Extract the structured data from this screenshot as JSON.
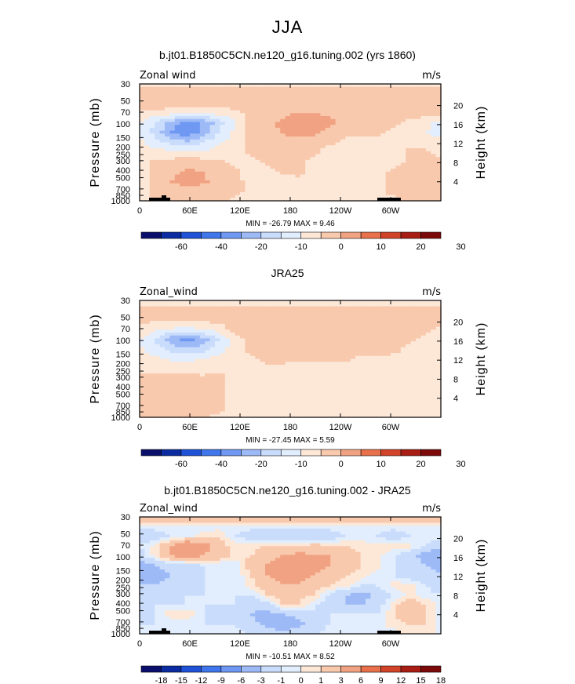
{
  "figure_title": "JJA",
  "chart_data": [
    {
      "type": "heatmap",
      "title": "b.jt01.B1850C5CN.ne120_g16.tuning.002 (yrs 1860)",
      "left_label": "Zonal wind",
      "right_label": "m/s",
      "ylabel": "Pressure (mb)",
      "ylabel_right": "Height (km)",
      "xlabel": "",
      "x_ticks": [
        "0",
        "60E",
        "120E",
        "180",
        "120W",
        "60W"
      ],
      "y_ticks": [
        "30",
        "50",
        "70",
        "100",
        "150",
        "200",
        "250",
        "300",
        "400",
        "500",
        "700",
        "850",
        "1000"
      ],
      "height_ticks": [
        "20",
        "16",
        "12",
        "8",
        "4"
      ],
      "stats": "MIN = -26.79   MAX =   9.46",
      "min": -26.79,
      "max": 9.46,
      "colorbar_labels": [
        "-60",
        "-40",
        "-20",
        "-10",
        "0",
        "10",
        "20",
        "30"
      ],
      "grid": [
        [
          -2,
          -2,
          -2,
          -2,
          -2,
          -2,
          -2,
          -2,
          -2,
          -2,
          -2,
          -2,
          -2,
          -2,
          -2,
          -2,
          -2,
          -2,
          -2,
          -2
        ],
        [
          3,
          3,
          3,
          3,
          3,
          3,
          3,
          3,
          3,
          3,
          3,
          3,
          3,
          3,
          3,
          3,
          3,
          3,
          3,
          3
        ],
        [
          3,
          3,
          3,
          3,
          3,
          3,
          3,
          3,
          3,
          3,
          3,
          3,
          3,
          3,
          3,
          3,
          3,
          3,
          3,
          3
        ],
        [
          -2,
          -2,
          -3,
          -4,
          -4,
          -3,
          -2,
          2,
          3,
          4,
          5,
          5,
          4,
          3,
          3,
          3,
          3,
          3,
          3,
          2
        ],
        [
          -5,
          -10,
          -18,
          -22,
          -20,
          -12,
          -5,
          2,
          4,
          6,
          8,
          7,
          6,
          4,
          3,
          3,
          2,
          -2,
          -4,
          -6
        ],
        [
          -6,
          -12,
          -20,
          -24,
          -18,
          -10,
          -4,
          1,
          3,
          5,
          6,
          6,
          4,
          2,
          2,
          2,
          -2,
          -3,
          -5,
          -6
        ],
        [
          -4,
          -8,
          -12,
          -14,
          -10,
          -6,
          -2,
          1,
          3,
          4,
          4,
          3,
          1,
          -2,
          -2,
          -2,
          -2,
          -2,
          -3,
          -4
        ],
        [
          -2,
          -3,
          -4,
          -5,
          -4,
          -3,
          -1,
          1,
          2,
          3,
          2,
          1,
          -2,
          -3,
          -3,
          -3,
          -2,
          1,
          1,
          -2
        ],
        [
          -1,
          1,
          2,
          3,
          2,
          1,
          -1,
          -2,
          1,
          2,
          1,
          -1,
          -2,
          -3,
          -3,
          -2,
          -2,
          1,
          2,
          1
        ],
        [
          -2,
          2,
          4,
          6,
          5,
          3,
          1,
          -2,
          -2,
          1,
          1,
          -1,
          -2,
          -2,
          -2,
          -2,
          1,
          3,
          3,
          2
        ],
        [
          -2,
          2,
          5,
          7,
          6,
          3,
          1,
          -1,
          -2,
          -2,
          -1,
          -1,
          -2,
          -2,
          -2,
          -1,
          1,
          2,
          2,
          1
        ],
        [
          -1,
          1,
          3,
          3,
          3,
          2,
          1,
          -1,
          -1,
          -1,
          -1,
          -1,
          -1,
          -1,
          -1,
          -1,
          1,
          1,
          1,
          1
        ],
        [
          -1,
          1,
          2,
          2,
          1,
          1,
          -1,
          -1,
          -1,
          -1,
          -1,
          -1,
          -1,
          -1,
          -1,
          -1,
          -1,
          1,
          1,
          1
        ]
      ]
    },
    {
      "type": "heatmap",
      "title": "JRA25",
      "left_label": "Zonal_wind",
      "right_label": "m/s",
      "ylabel": "Pressure (mb)",
      "ylabel_right": "Height (km)",
      "xlabel": "",
      "x_ticks": [
        "0",
        "60E",
        "120E",
        "180",
        "120W",
        "60W"
      ],
      "y_ticks": [
        "30",
        "50",
        "70",
        "100",
        "150",
        "200",
        "250",
        "300",
        "400",
        "500",
        "700",
        "850",
        "1000"
      ],
      "height_ticks": [
        "20",
        "16",
        "12",
        "8",
        "4"
      ],
      "stats": "MIN = -27.45   MAX =   5.59",
      "min": -27.45,
      "max": 5.59,
      "colorbar_labels": [
        "-60",
        "-40",
        "-20",
        "-10",
        "0",
        "10",
        "20",
        "30"
      ],
      "grid": [
        [
          -3,
          -3,
          -3,
          -3,
          -3,
          -3,
          -3,
          -3,
          -3,
          -3,
          -3,
          -3,
          -3,
          -3,
          -3,
          -3,
          -3,
          -3,
          -3,
          -3
        ],
        [
          1,
          1,
          1,
          1,
          1,
          1,
          2,
          3,
          3,
          3,
          3,
          3,
          3,
          2,
          2,
          2,
          1,
          1,
          1,
          1
        ],
        [
          1,
          1,
          1,
          1,
          1,
          2,
          3,
          3,
          4,
          4,
          4,
          4,
          3,
          3,
          3,
          2,
          1,
          1,
          1,
          1
        ],
        [
          -2,
          -4,
          -6,
          -7,
          -5,
          -3,
          2,
          3,
          4,
          4,
          4,
          4,
          4,
          3,
          3,
          3,
          2,
          1,
          1,
          -1
        ],
        [
          -5,
          -10,
          -18,
          -22,
          -18,
          -10,
          -2,
          2,
          3,
          3,
          3,
          3,
          3,
          3,
          4,
          5,
          3,
          1,
          -1,
          -2
        ],
        [
          -4,
          -8,
          -12,
          -14,
          -12,
          -8,
          -2,
          1,
          2,
          2,
          2,
          2,
          2,
          2,
          2,
          2,
          1,
          -1,
          -1,
          -2
        ],
        [
          -2,
          -4,
          -6,
          -6,
          -5,
          -3,
          -1,
          -1,
          1,
          1,
          1,
          1,
          1,
          1,
          -1,
          -1,
          -1,
          -1,
          -1,
          -2
        ],
        [
          -1,
          -2,
          -2,
          -2,
          -2,
          -1,
          -1,
          -1,
          -1,
          -1,
          -2,
          -2,
          -2,
          -2,
          -2,
          -2,
          -2,
          -2,
          -2,
          -2
        ],
        [
          1,
          2,
          2,
          2,
          1,
          1,
          -1,
          -1,
          -2,
          -2,
          -2,
          -2,
          -2,
          -2,
          -2,
          -2,
          -2,
          -2,
          -2,
          -1
        ],
        [
          1,
          2,
          3,
          3,
          2,
          1,
          -1,
          -2,
          -2,
          -2,
          -2,
          -2,
          -2,
          -2,
          -2,
          -2,
          -2,
          -2,
          -1,
          -1
        ],
        [
          1,
          2,
          3,
          3,
          3,
          1,
          -1,
          -2,
          -2,
          -2,
          -2,
          -2,
          -2,
          -2,
          -2,
          -2,
          -2,
          -1,
          -1,
          -1
        ],
        [
          1,
          1,
          2,
          2,
          1,
          1,
          -1,
          -1,
          -1,
          -1,
          -1,
          -1,
          -1,
          -1,
          -1,
          -1,
          -1,
          -1,
          -1,
          -1
        ],
        [
          1,
          1,
          1,
          1,
          1,
          -1,
          -1,
          -1,
          -1,
          -1,
          -1,
          -1,
          -1,
          -1,
          -1,
          -1,
          -1,
          -1,
          -1,
          -1
        ]
      ]
    },
    {
      "type": "heatmap",
      "title": "b.jt01.B1850C5CN.ne120_g16.tuning.002 - JRA25",
      "left_label": "Zonal_wind",
      "right_label": "m/s",
      "ylabel": "Pressure (mb)",
      "ylabel_right": "Height (km)",
      "xlabel": "",
      "x_ticks": [
        "0",
        "60E",
        "120E",
        "180",
        "120W",
        "60W"
      ],
      "y_ticks": [
        "30",
        "50",
        "70",
        "100",
        "150",
        "200",
        "250",
        "300",
        "400",
        "500",
        "700",
        "850",
        "1000"
      ],
      "height_ticks": [
        "20",
        "16",
        "12",
        "8",
        "4"
      ],
      "stats": "MIN = -10.51   MAX =   8.52",
      "min": -10.51,
      "max": 8.52,
      "colorbar_labels": [
        "-18",
        "-15",
        "-12",
        "-9",
        "-6",
        "-3",
        "-1",
        "0",
        "1",
        "3",
        "6",
        "9",
        "12",
        "15",
        "18"
      ],
      "grid": [
        [
          3,
          3,
          3,
          3,
          3,
          3,
          3,
          3,
          3,
          3,
          3,
          3,
          3,
          3,
          3,
          3,
          3,
          3,
          3,
          3
        ],
        [
          -0.5,
          -0.5,
          -0.5,
          -0.5,
          -0.5,
          -0.5,
          -0.5,
          -0.5,
          -0.5,
          -0.5,
          -0.5,
          -0.5,
          -0.5,
          -0.5,
          -0.5,
          -0.5,
          -0.5,
          -0.5,
          -0.5,
          -0.5
        ],
        [
          -2,
          -2,
          -1,
          -0.5,
          0.5,
          1,
          -1,
          -2,
          -3,
          -2,
          -2,
          -3,
          -2,
          -1,
          -0.5,
          -1,
          -2,
          -1,
          -0.5,
          -0.5
        ],
        [
          -1,
          0.5,
          3,
          6,
          4,
          2,
          0.5,
          0.5,
          1,
          1,
          1,
          2,
          1,
          1,
          0.5,
          0.5,
          0.5,
          0.5,
          -1,
          -2
        ],
        [
          -2,
          0.5,
          3,
          4,
          3,
          2,
          0.5,
          1,
          2,
          3,
          4,
          3,
          3,
          2,
          1,
          0.5,
          -1,
          -2,
          -4,
          -6
        ],
        [
          -4,
          -3,
          -2,
          -2,
          -1,
          -1,
          -1,
          2,
          3,
          4,
          4,
          4,
          3,
          2,
          1,
          0.5,
          -1,
          -2,
          -3,
          -4
        ],
        [
          -4,
          -4,
          -3,
          -2,
          -1,
          -1,
          -1,
          1,
          3,
          4,
          4,
          3,
          2,
          1,
          0.5,
          -0.5,
          -1,
          -2,
          -2,
          -3
        ],
        [
          -3,
          -3,
          -2,
          -2,
          -1,
          -1,
          -1,
          0.5,
          2,
          3,
          3,
          2,
          1,
          0.5,
          -1,
          -1,
          0.5,
          0.5,
          -1,
          -2
        ],
        [
          -2,
          -2,
          -2,
          -1,
          -1,
          -0.5,
          -1,
          -1,
          1,
          2,
          2,
          1,
          -1,
          -3,
          -4,
          -2,
          -1,
          0.5,
          -0.5,
          -1
        ],
        [
          -1,
          -1,
          -1,
          -1,
          -1,
          -1,
          -1,
          -2,
          -2,
          1,
          1,
          -1,
          -2,
          -3,
          -3,
          -2,
          0.5,
          2,
          1,
          -0.5
        ],
        [
          -2,
          -1,
          1,
          1,
          -1,
          -2,
          -1,
          -3,
          -4,
          -3,
          -2,
          -1,
          -1,
          -1,
          -1,
          -1,
          1,
          2,
          1,
          -0.5
        ],
        [
          -1,
          -1,
          -1,
          -1,
          -1,
          -1,
          -1,
          -2,
          -4,
          -6,
          -4,
          -2,
          -1,
          -1,
          -1,
          -0.5,
          0.5,
          1,
          1,
          -0.5
        ],
        [
          -0.5,
          -0.5,
          -0.5,
          -0.5,
          -0.5,
          -0.5,
          -0.5,
          -1,
          -1,
          -2,
          -1,
          -1,
          -0.5,
          -0.5,
          -0.5,
          -0.5,
          -0.5,
          0.5,
          0.5,
          -0.5
        ]
      ]
    }
  ]
}
